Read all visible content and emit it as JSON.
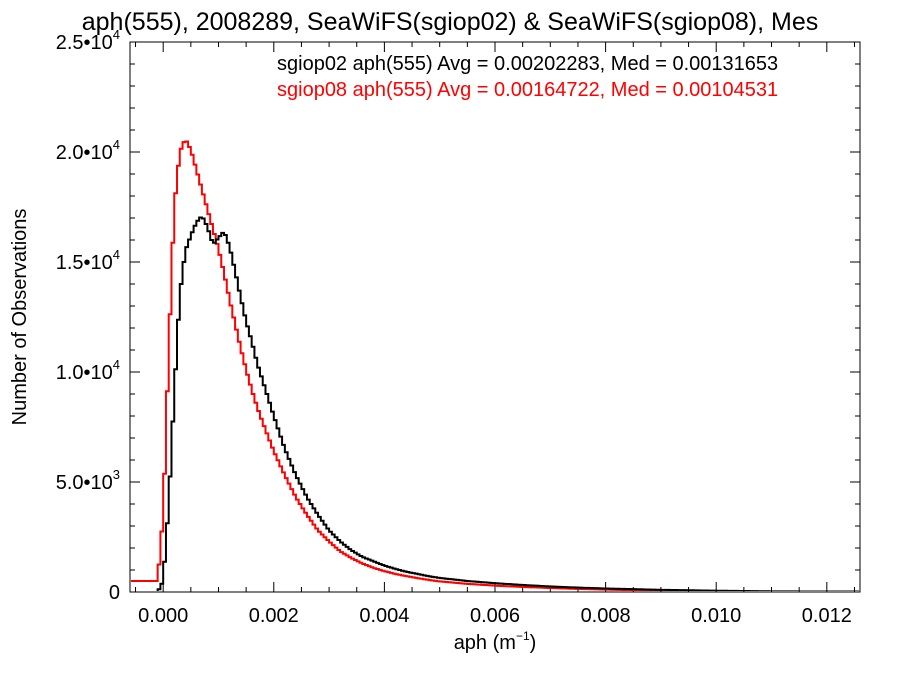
{
  "chart_data": {
    "type": "line",
    "title": "aph(555), 2008289, SeaWiFS(sgiop02) & SeaWiFS(sgiop08), Mes",
    "xlabel_main": "aph (m",
    "xlabel_sup": "−1",
    "xlabel_close": ")",
    "ylabel": "Number of Observations",
    "xlim": [
      -0.0006,
      0.0126
    ],
    "ylim": [
      0,
      25000
    ],
    "x_ticks": [
      {
        "value": 0.0,
        "label": "0.000"
      },
      {
        "value": 0.002,
        "label": "0.002"
      },
      {
        "value": 0.004,
        "label": "0.004"
      },
      {
        "value": 0.006,
        "label": "0.006"
      },
      {
        "value": 0.008,
        "label": "0.008"
      },
      {
        "value": 0.01,
        "label": "0.010"
      },
      {
        "value": 0.012,
        "label": "0.012"
      }
    ],
    "y_ticks": [
      {
        "value": 0,
        "mant": "0",
        "exp": ""
      },
      {
        "value": 5000,
        "mant": "5.0•10",
        "exp": "3"
      },
      {
        "value": 10000,
        "mant": "1.0•10",
        "exp": "4"
      },
      {
        "value": 15000,
        "mant": "1.5•10",
        "exp": "4"
      },
      {
        "value": 20000,
        "mant": "2.0•10",
        "exp": "4"
      },
      {
        "value": 25000,
        "mant": "2.5•10",
        "exp": "4"
      }
    ],
    "annotations": [
      {
        "text": "sgiop02 aph(555) Avg = 0.00202283, Med = 0.00131653",
        "color": "#000000"
      },
      {
        "text": "sgiop08 aph(555) Avg = 0.00164722, Med = 0.00104531",
        "color": "#ff0000"
      }
    ],
    "series": [
      {
        "color": "#000000",
        "x": [
          -0.0001,
          0.0,
          0.0001,
          0.0002,
          0.0003,
          0.0004,
          0.0005,
          0.0006,
          0.0007,
          0.0008,
          0.0009,
          0.001,
          0.0011,
          0.0012,
          0.0013,
          0.0014,
          0.0015,
          0.0016,
          0.0017,
          0.0018,
          0.002,
          0.0022,
          0.0024,
          0.0026,
          0.0028,
          0.003,
          0.0032,
          0.0034,
          0.0036,
          0.0038,
          0.004,
          0.0042,
          0.0044,
          0.0046,
          0.0048,
          0.005,
          0.0055,
          0.006,
          0.0065,
          0.007,
          0.0075,
          0.008,
          0.0085,
          0.009,
          0.0095,
          0.01,
          0.011,
          0.012
        ],
        "y": [
          0,
          500,
          4000,
          9000,
          13500,
          15500,
          16200,
          16800,
          17100,
          16600,
          15800,
          16100,
          16400,
          15700,
          14600,
          13400,
          12300,
          11400,
          10400,
          9600,
          8000,
          6500,
          5300,
          4300,
          3500,
          2800,
          2300,
          1900,
          1600,
          1400,
          1200,
          1050,
          920,
          820,
          720,
          640,
          500,
          400,
          320,
          250,
          200,
          160,
          130,
          100,
          80,
          60,
          30,
          20
        ]
      },
      {
        "color": "#ff0000",
        "x": [
          -0.0001,
          0.0,
          0.0001,
          0.0002,
          0.0003,
          0.0004,
          0.0005,
          0.0006,
          0.0007,
          0.0008,
          0.0009,
          0.001,
          0.0011,
          0.0012,
          0.0013,
          0.0014,
          0.0015,
          0.0016,
          0.0017,
          0.0018,
          0.002,
          0.0022,
          0.0024,
          0.0026,
          0.0028,
          0.003,
          0.0032,
          0.0034,
          0.0036,
          0.0038,
          0.004,
          0.0042,
          0.0044,
          0.0046,
          0.0048,
          0.005,
          0.0055,
          0.006,
          0.0065,
          0.007,
          0.0075,
          0.008,
          0.0085,
          0.009,
          0.0095,
          0.01,
          0.011,
          0.012
        ],
        "y": [
          500,
          3500,
          11000,
          17500,
          20000,
          20600,
          20100,
          19200,
          18300,
          17400,
          16500,
          15600,
          14500,
          13300,
          12200,
          11100,
          10100,
          9200,
          8400,
          7700,
          6400,
          5300,
          4300,
          3500,
          2800,
          2300,
          1850,
          1550,
          1300,
          1100,
          950,
          820,
          720,
          630,
          550,
          480,
          370,
          290,
          230,
          180,
          140,
          110,
          85,
          65,
          50,
          40,
          25,
          15
        ]
      }
    ]
  }
}
